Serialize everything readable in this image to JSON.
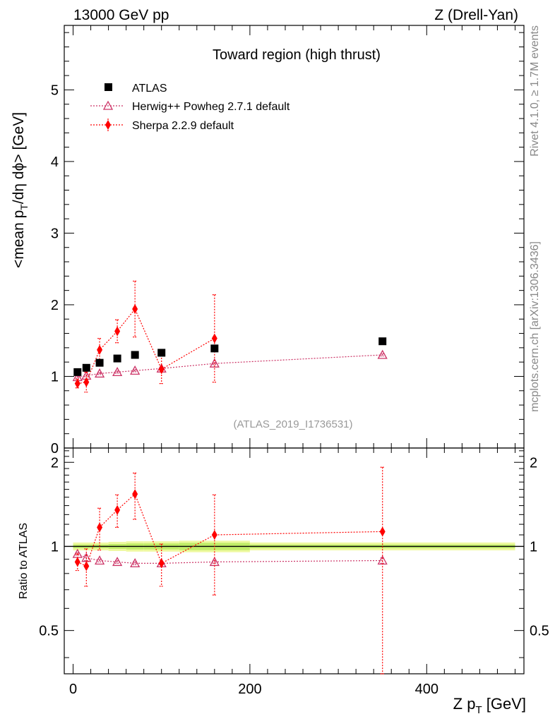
{
  "header": {
    "left": "13000 GeV pp",
    "right": "Z (Drell-Yan)"
  },
  "side_labels": {
    "rivet": "Rivet 4.1.0, ≥ 1.7M events",
    "mcplots": "mcplots.cern.ch [arXiv:1306.3436]"
  },
  "colors": {
    "atlas": "#000000",
    "herwig": "#cc3366",
    "sherpa": "#ff0000",
    "band_outer": "#eef9a0",
    "band_inner": "#9be33a"
  },
  "chart_data": [
    {
      "type": "scatter",
      "title": "Toward region (high thrust)",
      "watermark": "(ATLAS_2019_I1736531)",
      "xlabel": "Z p_T [GeV]",
      "ylabel": "<mean p_T/dη dϕ> [GeV]",
      "xlim": [
        -10,
        510
      ],
      "ylim": [
        0,
        5.9
      ],
      "yticks": [
        0,
        1,
        2,
        3,
        4,
        5
      ],
      "ytick_labels": [
        "0",
        "1",
        "2",
        "3",
        "4",
        "5"
      ],
      "legend_position": "top-left",
      "series": [
        {
          "name": "ATLAS",
          "marker": "square",
          "x": [
            5,
            15,
            30,
            50,
            70,
            100,
            160,
            350
          ],
          "y": [
            1.06,
            1.12,
            1.19,
            1.25,
            1.3,
            1.33,
            1.39,
            1.49
          ]
        },
        {
          "name": "Herwig++ Powheg 2.7.1 default",
          "marker": "triangle-open",
          "x": [
            5,
            15,
            30,
            50,
            70,
            100,
            160,
            350
          ],
          "y": [
            0.99,
            1.01,
            1.04,
            1.06,
            1.08,
            1.11,
            1.18,
            1.3
          ],
          "err": [
            0.015,
            0.015,
            0.015,
            0.015,
            0.015,
            0.015,
            0.015,
            0.015
          ]
        },
        {
          "name": "Sherpa 2.2.9 default",
          "marker": "diamond",
          "x": [
            5,
            15,
            30,
            50,
            70,
            100,
            160,
            350
          ],
          "y": [
            0.9,
            0.92,
            1.37,
            1.63,
            1.94,
            1.1,
            1.53,
            null
          ],
          "err": [
            0.06,
            0.14,
            0.16,
            0.16,
            0.39,
            0.2,
            0.61,
            null
          ]
        }
      ]
    },
    {
      "type": "scatter",
      "title": "Ratio to ATLAS",
      "xlabel": "Z p_T [GeV]",
      "ylabel": "Ratio to ATLAS",
      "xlim": [
        -10,
        510
      ],
      "ylim": [
        0.35,
        2.25
      ],
      "yticks": [
        0.5,
        1,
        2
      ],
      "ytick_labels": [
        "0.5",
        "1",
        "2"
      ],
      "xticks": [
        0,
        200,
        400
      ],
      "xtick_labels": [
        "0",
        "200",
        "400"
      ],
      "reference_line": 1.0,
      "series": [
        {
          "name": "Herwig++ Powheg 2.7.1 default",
          "marker": "triangle-open",
          "x": [
            5,
            15,
            30,
            50,
            70,
            100,
            160,
            350
          ],
          "y": [
            0.94,
            0.91,
            0.89,
            0.88,
            0.87,
            0.87,
            0.88,
            0.89
          ],
          "err": [
            0.01,
            0.02,
            0.01,
            0.01,
            0.01,
            0.01,
            0.01,
            0.02
          ]
        },
        {
          "name": "Sherpa 2.2.9 default",
          "marker": "diamond",
          "x": [
            5,
            15,
            30,
            50,
            70,
            100,
            160,
            350
          ],
          "y": [
            0.88,
            0.85,
            1.17,
            1.35,
            1.54,
            0.87,
            1.1,
            1.13
          ],
          "err": [
            0.06,
            0.13,
            0.2,
            0.18,
            0.29,
            0.15,
            0.43,
            0.79
          ]
        }
      ],
      "band": {
        "x": [
          0,
          20,
          40,
          60,
          80,
          120,
          200,
          500
        ],
        "lo": [
          0.985,
          0.985,
          0.98,
          0.975,
          0.975,
          0.97,
          0.985,
          0.985
        ],
        "hi": [
          1.015,
          1.015,
          1.02,
          1.025,
          1.025,
          1.03,
          1.015,
          1.015
        ]
      }
    }
  ]
}
